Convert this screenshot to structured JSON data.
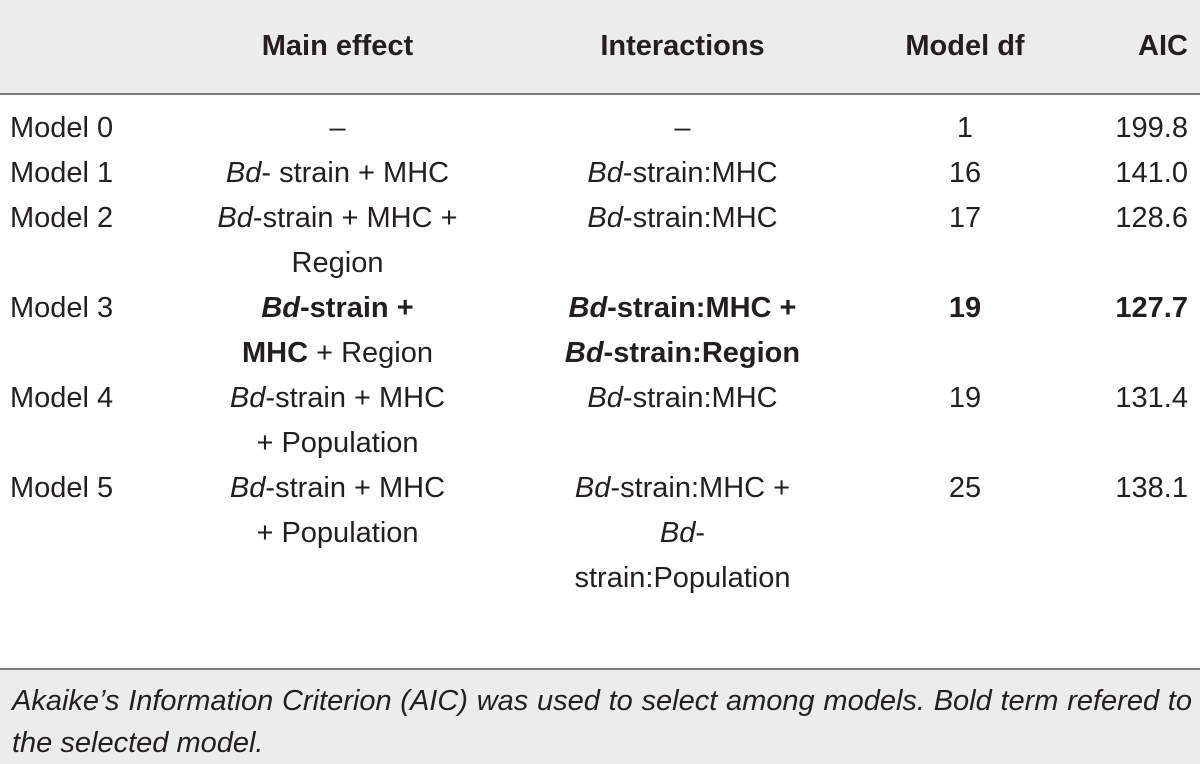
{
  "table": {
    "headers": {
      "model": "",
      "main_effect": "Main effect",
      "interactions": "Interactions",
      "model_df": "Model df",
      "aic": "AIC"
    },
    "rows": [
      {
        "model": "Model 0",
        "main_effect": {
          "line1": "–"
        },
        "interactions": {
          "line1": "–"
        },
        "df": "1",
        "aic": "199.8"
      },
      {
        "model": "Model 1",
        "main_effect": {
          "it": "Bd",
          "rest": "- strain + MHC"
        },
        "interactions": {
          "it": "Bd",
          "rest": "-strain:MHC"
        },
        "df": "16",
        "aic": "141.0"
      },
      {
        "model": "Model 2",
        "main_effect": {
          "it": "Bd",
          "rest": "-strain + MHC +",
          "line2": "Region"
        },
        "interactions": {
          "it": "Bd",
          "rest": "-strain:MHC"
        },
        "df": "17",
        "aic": "128.6"
      },
      {
        "model": "Model 3",
        "main_effect": {
          "it": "Bd",
          "rest": "-strain +",
          "line2_bold": "MHC",
          "line2_rest": " + Region"
        },
        "interactions": {
          "it": "Bd",
          "rest": "-strain:MHC +",
          "it2": "Bd",
          "rest2": "-strain:Region"
        },
        "df": "19",
        "aic": "127.7",
        "selected": true
      },
      {
        "model": "Model 4",
        "main_effect": {
          "it": "Bd",
          "rest": "-strain + MHC",
          "line2": "+ Population"
        },
        "interactions": {
          "it": "Bd",
          "rest": "-strain:MHC"
        },
        "df": "19",
        "aic": "131.4"
      },
      {
        "model": "Model 5",
        "main_effect": {
          "it": "Bd",
          "rest": "-strain + MHC",
          "line2": "+ Population"
        },
        "interactions": {
          "it": "Bd",
          "rest": "-strain:MHC +",
          "it2": "Bd",
          "rest2": "-",
          "line3": "strain:Population"
        },
        "df": "25",
        "aic": "138.1"
      }
    ]
  },
  "footnote": "Akaike’s Information Criterion (AIC) was used to select among models. Bold term refered to the selected model.",
  "colors": {
    "band_gray": "#ececec",
    "rule_gray": "#7a7a7a",
    "text": "#231f20"
  }
}
